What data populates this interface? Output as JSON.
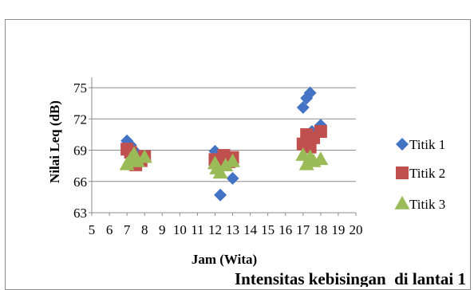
{
  "chart_data": {
    "type": "scatter",
    "title": "Intensitas kebisingan  di lantai 1",
    "xlabel": "Jam (Wita)",
    "ylabel": "Nilai Leq (dB)",
    "xlim": [
      5,
      20
    ],
    "ylim": [
      63,
      76
    ],
    "x_ticks": [
      "5",
      "6",
      "7",
      "8",
      "9",
      "10",
      "11",
      "12",
      "13",
      "14",
      "15",
      "16",
      "17",
      "18",
      "19",
      "20"
    ],
    "y_ticks": [
      "63",
      "66",
      "69",
      "72",
      "75"
    ],
    "grid": "horizontal",
    "legend_position": "right",
    "series": [
      {
        "name": "Titik 1",
        "marker": "diamond",
        "color": "#4472C4",
        "points": [
          [
            7,
            69.9
          ],
          [
            7.2,
            69.5
          ],
          [
            7.5,
            68.8
          ],
          [
            7.8,
            68.3
          ],
          [
            8,
            68.1
          ],
          [
            12,
            68.9
          ],
          [
            12.2,
            68.2
          ],
          [
            12.3,
            64.7
          ],
          [
            12.7,
            67.8
          ],
          [
            13,
            66.3
          ],
          [
            17,
            73.1
          ],
          [
            17.2,
            74
          ],
          [
            17.4,
            74.5
          ],
          [
            17.5,
            70.8
          ],
          [
            18,
            71.4
          ]
        ]
      },
      {
        "name": "Titik 2",
        "marker": "square",
        "color": "#C0504D",
        "points": [
          [
            7,
            69.1
          ],
          [
            7.2,
            68.8
          ],
          [
            7.5,
            67.6
          ],
          [
            7.8,
            68
          ],
          [
            8,
            68.4
          ],
          [
            12,
            68.1
          ],
          [
            12.2,
            67.7
          ],
          [
            12.5,
            68.5
          ],
          [
            12.8,
            67.9
          ],
          [
            13,
            68.3
          ],
          [
            17,
            69.6
          ],
          [
            17.2,
            70.5
          ],
          [
            17.4,
            69.3
          ],
          [
            17.6,
            70.2
          ],
          [
            18,
            70.8
          ]
        ]
      },
      {
        "name": "Titik 3",
        "marker": "triangle",
        "color": "#9BBB59",
        "points": [
          [
            7,
            67.6
          ],
          [
            7.2,
            68.1
          ],
          [
            7.4,
            68.6
          ],
          [
            7.6,
            67.9
          ],
          [
            8,
            68.3
          ],
          [
            12,
            67.7
          ],
          [
            12.1,
            67.2
          ],
          [
            12.3,
            66.8
          ],
          [
            12.6,
            67.5
          ],
          [
            13,
            67.9
          ],
          [
            17,
            68.5
          ],
          [
            17.2,
            67.6
          ],
          [
            17.4,
            68.3
          ],
          [
            17.6,
            67.9
          ],
          [
            18,
            68.1
          ]
        ]
      }
    ]
  }
}
